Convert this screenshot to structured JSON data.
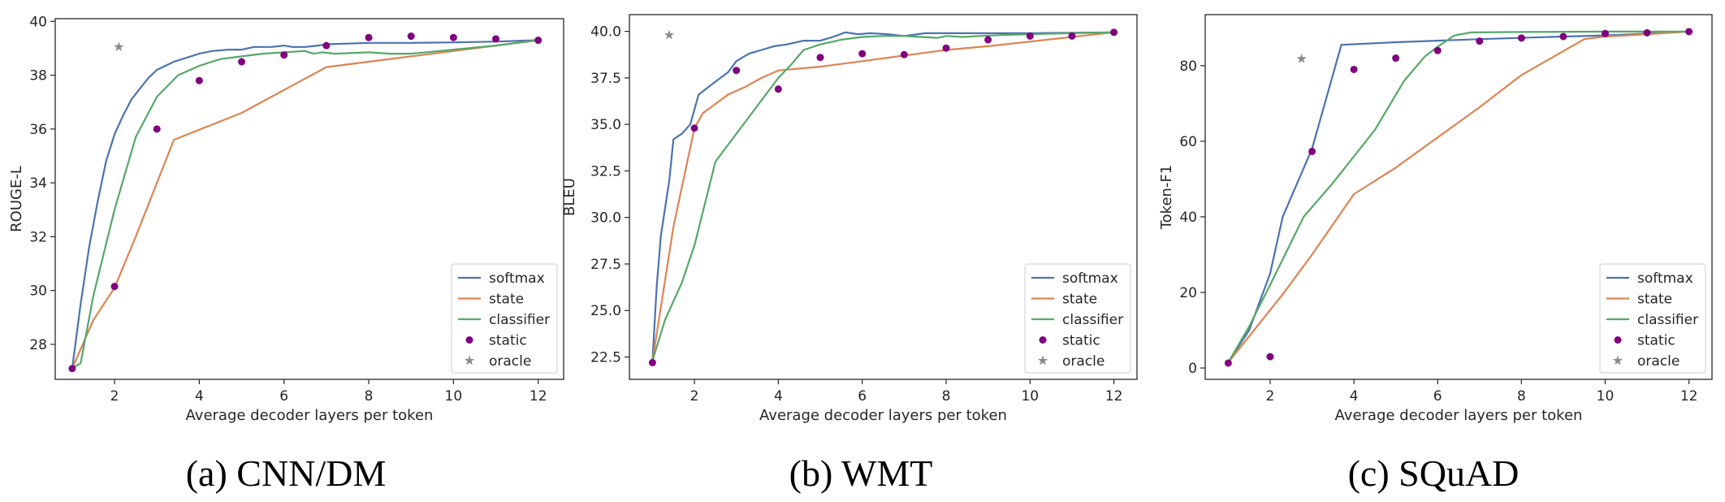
{
  "colors": {
    "softmax": "#4c72b0",
    "state": "#dd8452",
    "classifier": "#55a868",
    "static": "#800080",
    "oracle": "#8c8c8c"
  },
  "chart_data": [
    {
      "type": "line",
      "caption": "(a) CNN/DM",
      "xlabel": "Average decoder layers per token",
      "ylabel": "ROUGE-L",
      "xlim": [
        0.6,
        12.6
      ],
      "ylim": [
        26.7,
        40.1
      ],
      "xticks": [
        2,
        4,
        6,
        8,
        10,
        12
      ],
      "yticks": [
        28,
        30,
        32,
        34,
        36,
        38,
        40
      ],
      "legend": {
        "position": "lower-right",
        "entries": [
          "softmax",
          "state",
          "classifier",
          "static",
          "oracle"
        ]
      },
      "series": [
        {
          "name": "softmax",
          "kind": "line",
          "points": [
            [
              1,
              27.1
            ],
            [
              1.2,
              29.5
            ],
            [
              1.4,
              31.6
            ],
            [
              1.6,
              33.3
            ],
            [
              1.8,
              34.8
            ],
            [
              2,
              35.8
            ],
            [
              2.2,
              36.5
            ],
            [
              2.4,
              37.1
            ],
            [
              2.6,
              37.5
            ],
            [
              2.8,
              37.9
            ],
            [
              3,
              38.2
            ],
            [
              3.2,
              38.35
            ],
            [
              3.4,
              38.5
            ],
            [
              3.6,
              38.6
            ],
            [
              3.8,
              38.7
            ],
            [
              4,
              38.8
            ],
            [
              4.3,
              38.9
            ],
            [
              4.7,
              38.95
            ],
            [
              5,
              38.95
            ],
            [
              5.3,
              39.05
            ],
            [
              5.7,
              39.05
            ],
            [
              6,
              39.1
            ],
            [
              6.2,
              39.05
            ],
            [
              6.5,
              39.05
            ],
            [
              6.8,
              39.1
            ],
            [
              7,
              39.15
            ],
            [
              8,
              39.2
            ],
            [
              9,
              39.2
            ],
            [
              10,
              39.22
            ],
            [
              11,
              39.25
            ],
            [
              12,
              39.3
            ]
          ]
        },
        {
          "name": "state",
          "kind": "line",
          "points": [
            [
              1,
              27.1
            ],
            [
              1.5,
              28.9
            ],
            [
              2,
              30.1
            ],
            [
              2.5,
              32.0
            ],
            [
              3,
              34.0
            ],
            [
              3.4,
              35.6
            ],
            [
              5,
              36.6
            ],
            [
              7,
              38.3
            ],
            [
              8,
              38.5
            ],
            [
              10,
              38.9
            ],
            [
              12,
              39.3
            ]
          ]
        },
        {
          "name": "classifier",
          "kind": "line",
          "points": [
            [
              1,
              27.1
            ],
            [
              1.2,
              27.3
            ],
            [
              1.5,
              29.8
            ],
            [
              2,
              33.0
            ],
            [
              2.5,
              35.7
            ],
            [
              3,
              37.2
            ],
            [
              3.5,
              38.0
            ],
            [
              4,
              38.35
            ],
            [
              4.5,
              38.6
            ],
            [
              5,
              38.7
            ],
            [
              5.5,
              38.8
            ],
            [
              6,
              38.85
            ],
            [
              6.5,
              38.9
            ],
            [
              6.7,
              38.8
            ],
            [
              6.9,
              38.85
            ],
            [
              7.2,
              38.8
            ],
            [
              8,
              38.85
            ],
            [
              8.5,
              38.8
            ],
            [
              9,
              38.8
            ],
            [
              10,
              38.95
            ],
            [
              11,
              39.1
            ],
            [
              12,
              39.3
            ]
          ]
        },
        {
          "name": "static",
          "kind": "scatter",
          "points": [
            [
              1,
              27.1
            ],
            [
              2,
              30.15
            ],
            [
              3,
              36.0
            ],
            [
              4,
              37.8
            ],
            [
              5,
              38.5
            ],
            [
              6,
              38.75
            ],
            [
              7,
              39.1
            ],
            [
              8,
              39.4
            ],
            [
              9,
              39.45
            ],
            [
              10,
              39.4
            ],
            [
              11,
              39.35
            ],
            [
              12,
              39.3
            ]
          ]
        },
        {
          "name": "oracle",
          "kind": "star",
          "points": [
            [
              2.1,
              39.05
            ]
          ]
        }
      ]
    },
    {
      "type": "line",
      "caption": "(b) WMT",
      "xlabel": "Average decoder layers per token",
      "ylabel": "BLEU",
      "xlim": [
        0.45,
        12.55
      ],
      "ylim": [
        21.3,
        40.9
      ],
      "xticks": [
        2,
        4,
        6,
        8,
        10,
        12
      ],
      "yticks": [
        22.5,
        25.0,
        27.5,
        30.0,
        32.5,
        35.0,
        37.5,
        40.0
      ],
      "ytick_labels": [
        "22.5",
        "25.0",
        "27.5",
        "30.0",
        "32.5",
        "35.0",
        "37.5",
        "40.0"
      ],
      "legend": {
        "position": "lower-right",
        "entries": [
          "softmax",
          "state",
          "classifier",
          "static",
          "oracle"
        ]
      },
      "series": [
        {
          "name": "softmax",
          "kind": "line",
          "points": [
            [
              1,
              22.3
            ],
            [
              1.1,
              26.3
            ],
            [
              1.2,
              29.0
            ],
            [
              1.4,
              32.0
            ],
            [
              1.5,
              34.2
            ],
            [
              1.7,
              34.5
            ],
            [
              1.9,
              35.0
            ],
            [
              2.1,
              36.6
            ],
            [
              2.5,
              37.3
            ],
            [
              2.8,
              37.8
            ],
            [
              3,
              38.4
            ],
            [
              3.3,
              38.8
            ],
            [
              3.6,
              39.0
            ],
            [
              3.9,
              39.2
            ],
            [
              4.2,
              39.3
            ],
            [
              4.6,
              39.5
            ],
            [
              5,
              39.5
            ],
            [
              5.3,
              39.7
            ],
            [
              5.6,
              39.95
            ],
            [
              5.9,
              39.85
            ],
            [
              6.2,
              39.9
            ],
            [
              6.6,
              39.85
            ],
            [
              7,
              39.75
            ],
            [
              7.5,
              39.9
            ],
            [
              8.5,
              39.9
            ],
            [
              10,
              39.9
            ],
            [
              12,
              39.95
            ]
          ]
        },
        {
          "name": "state",
          "kind": "line",
          "points": [
            [
              1,
              22.3
            ],
            [
              1.5,
              29.5
            ],
            [
              2,
              34.8
            ],
            [
              2.2,
              35.6
            ],
            [
              2.8,
              36.6
            ],
            [
              3.2,
              37.0
            ],
            [
              3.6,
              37.5
            ],
            [
              4,
              37.9
            ],
            [
              5,
              38.1
            ],
            [
              6,
              38.4
            ],
            [
              7,
              38.7
            ],
            [
              8,
              39.0
            ],
            [
              9,
              39.2
            ],
            [
              10,
              39.45
            ],
            [
              11,
              39.7
            ],
            [
              12,
              39.95
            ]
          ]
        },
        {
          "name": "classifier",
          "kind": "line",
          "points": [
            [
              1,
              22.3
            ],
            [
              1.3,
              24.5
            ],
            [
              1.7,
              26.5
            ],
            [
              2,
              28.5
            ],
            [
              2.5,
              33.0
            ],
            [
              3,
              34.5
            ],
            [
              3.5,
              36.0
            ],
            [
              4,
              37.5
            ],
            [
              4.3,
              38.2
            ],
            [
              4.6,
              39.0
            ],
            [
              5,
              39.3
            ],
            [
              5.5,
              39.55
            ],
            [
              6,
              39.7
            ],
            [
              6.5,
              39.75
            ],
            [
              7,
              39.75
            ],
            [
              7.4,
              39.7
            ],
            [
              7.8,
              39.65
            ],
            [
              8,
              39.75
            ],
            [
              8.4,
              39.7
            ],
            [
              8.8,
              39.75
            ],
            [
              9.3,
              39.8
            ],
            [
              10,
              39.85
            ],
            [
              11,
              39.9
            ],
            [
              12,
              39.95
            ]
          ]
        },
        {
          "name": "static",
          "kind": "scatter",
          "points": [
            [
              1,
              22.2
            ],
            [
              2,
              34.8
            ],
            [
              3,
              37.9
            ],
            [
              4,
              36.9
            ],
            [
              5,
              38.6
            ],
            [
              6,
              38.8
            ],
            [
              7,
              38.75
            ],
            [
              8,
              39.1
            ],
            [
              9,
              39.55
            ],
            [
              10,
              39.75
            ],
            [
              11,
              39.75
            ],
            [
              12,
              39.95
            ]
          ]
        },
        {
          "name": "oracle",
          "kind": "star",
          "points": [
            [
              1.4,
              39.8
            ]
          ]
        }
      ]
    },
    {
      "type": "line",
      "caption": "(c) SQuAD",
      "xlabel": "Average decoder layers per token",
      "ylabel": "Token-F1",
      "xlim": [
        0.45,
        12.55
      ],
      "ylim": [
        -3,
        93.5
      ],
      "xticks": [
        2,
        4,
        6,
        8,
        10,
        12
      ],
      "yticks": [
        0,
        20,
        40,
        60,
        80
      ],
      "legend": {
        "position": "lower-right",
        "entries": [
          "softmax",
          "state",
          "classifier",
          "static",
          "oracle"
        ]
      },
      "series": [
        {
          "name": "softmax",
          "kind": "line",
          "points": [
            [
              1,
              1.5
            ],
            [
              1.5,
              10.0
            ],
            [
              2,
              25.0
            ],
            [
              2.3,
              40.0
            ],
            [
              3,
              58.0
            ],
            [
              3.7,
              85.5
            ],
            [
              5,
              86.2
            ],
            [
              7,
              87.0
            ],
            [
              9,
              87.7
            ],
            [
              10,
              88.0
            ],
            [
              11,
              88.5
            ],
            [
              12,
              89.0
            ]
          ]
        },
        {
          "name": "state",
          "kind": "line",
          "points": [
            [
              1,
              1.5
            ],
            [
              2.3,
              19.5
            ],
            [
              3,
              30.0
            ],
            [
              4,
              46.0
            ],
            [
              5,
              53.0
            ],
            [
              6,
              61.0
            ],
            [
              7,
              69.0
            ],
            [
              8,
              77.5
            ],
            [
              9.5,
              87.0
            ],
            [
              10,
              87.7
            ],
            [
              11,
              88.3
            ],
            [
              12,
              89.0
            ]
          ]
        },
        {
          "name": "classifier",
          "kind": "line",
          "points": [
            [
              1,
              1.5
            ],
            [
              1.5,
              11.0
            ],
            [
              2,
              22.0
            ],
            [
              2.8,
              40.0
            ],
            [
              3.5,
              49.0
            ],
            [
              4.5,
              63.0
            ],
            [
              5.2,
              76.0
            ],
            [
              5.7,
              82.5
            ],
            [
              6,
              85.0
            ],
            [
              6.4,
              88.0
            ],
            [
              6.8,
              88.8
            ],
            [
              8,
              88.9
            ],
            [
              10,
              89.0
            ],
            [
              12,
              89.0
            ]
          ]
        },
        {
          "name": "static",
          "kind": "scatter",
          "points": [
            [
              1,
              1.3
            ],
            [
              2,
              3.0
            ],
            [
              3,
              57.3
            ],
            [
              4,
              79.0
            ],
            [
              5,
              82.0
            ],
            [
              6,
              84.0
            ],
            [
              7,
              86.5
            ],
            [
              8,
              87.3
            ],
            [
              9,
              87.7
            ],
            [
              10,
              88.5
            ],
            [
              11,
              88.7
            ],
            [
              12,
              89.0
            ]
          ]
        },
        {
          "name": "oracle",
          "kind": "star",
          "points": [
            [
              2.75,
              81.8
            ]
          ]
        }
      ]
    }
  ]
}
